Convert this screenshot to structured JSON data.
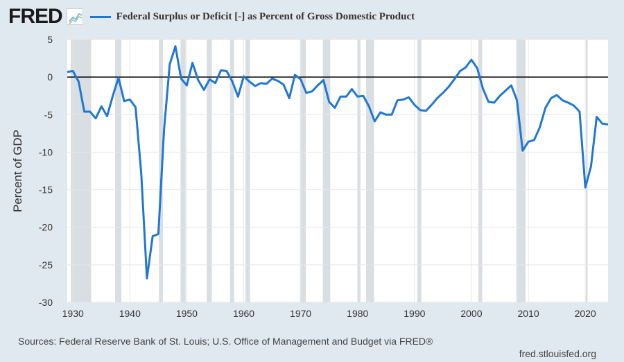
{
  "header": {
    "logo": "FRED",
    "logo_icon": "line-chart-icon",
    "legend_label": "Federal Surplus or Deficit [-] as Percent of Gross Domestic Product"
  },
  "footer": {
    "sources": "Sources: Federal Reserve Bank of St. Louis; U.S. Office of Management and Budget via FRED®",
    "site": "fred.stlouisfed.org"
  },
  "colors": {
    "background": "#e1e9f0",
    "plot": "#ffffff",
    "series": "#1f77d4",
    "recession": "#d9dee3",
    "grid": "#e6e6e6",
    "zero_line": "#000000"
  },
  "chart_data": {
    "type": "line",
    "title": "Federal Surplus or Deficit [-] as Percent of Gross Domestic Product",
    "xlabel": "",
    "ylabel": "Percent of GDP",
    "xlim": [
      1929,
      2024
    ],
    "ylim": [
      -30,
      5
    ],
    "x_ticks": [
      1930,
      1940,
      1950,
      1960,
      1970,
      1980,
      1990,
      2000,
      2010,
      2020
    ],
    "y_ticks": [
      5,
      0,
      -5,
      -10,
      -15,
      -20,
      -25,
      -30
    ],
    "grid": true,
    "zero_line": 0,
    "recessions": [
      [
        1929.6,
        1933.2
      ],
      [
        1937.4,
        1938.5
      ],
      [
        1945.1,
        1945.8
      ],
      [
        1948.9,
        1949.8
      ],
      [
        1953.5,
        1954.4
      ],
      [
        1957.6,
        1958.3
      ],
      [
        1960.3,
        1961.1
      ],
      [
        1969.9,
        1970.9
      ],
      [
        1973.9,
        1975.2
      ],
      [
        1980.0,
        1980.5
      ],
      [
        1981.5,
        1982.9
      ],
      [
        1990.5,
        1991.2
      ],
      [
        2001.2,
        2001.9
      ],
      [
        2007.9,
        2009.5
      ],
      [
        2020.1,
        2020.4
      ]
    ],
    "series": [
      {
        "name": "Federal Surplus or Deficit [-] as Percent of Gross Domestic Product",
        "x": [
          1929,
          1930,
          1931,
          1932,
          1933,
          1934,
          1935,
          1936,
          1937,
          1938,
          1939,
          1940,
          1941,
          1942,
          1943,
          1944,
          1945,
          1946,
          1947,
          1948,
          1949,
          1950,
          1951,
          1952,
          1953,
          1954,
          1955,
          1956,
          1957,
          1958,
          1959,
          1960,
          1961,
          1962,
          1963,
          1964,
          1965,
          1966,
          1967,
          1968,
          1969,
          1970,
          1971,
          1972,
          1973,
          1974,
          1975,
          1976,
          1977,
          1978,
          1979,
          1980,
          1981,
          1982,
          1983,
          1984,
          1985,
          1986,
          1987,
          1988,
          1989,
          1990,
          1991,
          1992,
          1993,
          1994,
          1995,
          1996,
          1997,
          1998,
          1999,
          2000,
          2001,
          2002,
          2003,
          2004,
          2005,
          2006,
          2007,
          2008,
          2009,
          2010,
          2011,
          2012,
          2013,
          2014,
          2015,
          2016,
          2017,
          2018,
          2019,
          2020,
          2021,
          2022,
          2023,
          2024
        ],
        "values": [
          0.7,
          0.8,
          -0.6,
          -4.6,
          -4.6,
          -5.5,
          -3.9,
          -5.2,
          -2.5,
          -0.1,
          -3.2,
          -3.0,
          -4.0,
          -12.8,
          -26.8,
          -21.2,
          -20.9,
          -7.0,
          1.7,
          4.1,
          -0.2,
          -1.1,
          1.9,
          -0.4,
          -1.7,
          -0.3,
          -0.8,
          0.9,
          0.8,
          -0.6,
          -2.6,
          0.1,
          -0.6,
          -1.2,
          -0.8,
          -0.9,
          -0.2,
          -0.5,
          -1.0,
          -2.8,
          0.3,
          -0.3,
          -2.1,
          -1.9,
          -1.1,
          -0.4,
          -3.3,
          -4.1,
          -2.6,
          -2.6,
          -1.6,
          -2.6,
          -2.5,
          -3.9,
          -5.9,
          -4.7,
          -5.0,
          -5.0,
          -3.1,
          -3.0,
          -2.7,
          -3.7,
          -4.4,
          -4.5,
          -3.7,
          -2.8,
          -2.1,
          -1.3,
          -0.3,
          0.8,
          1.3,
          2.3,
          1.2,
          -1.5,
          -3.3,
          -3.4,
          -2.5,
          -1.8,
          -1.1,
          -3.1,
          -9.8,
          -8.6,
          -8.4,
          -6.7,
          -4.1,
          -2.8,
          -2.4,
          -3.1,
          -3.4,
          -3.8,
          -4.6,
          -14.7,
          -11.9,
          -5.3,
          -6.2,
          -6.3
        ]
      }
    ]
  }
}
